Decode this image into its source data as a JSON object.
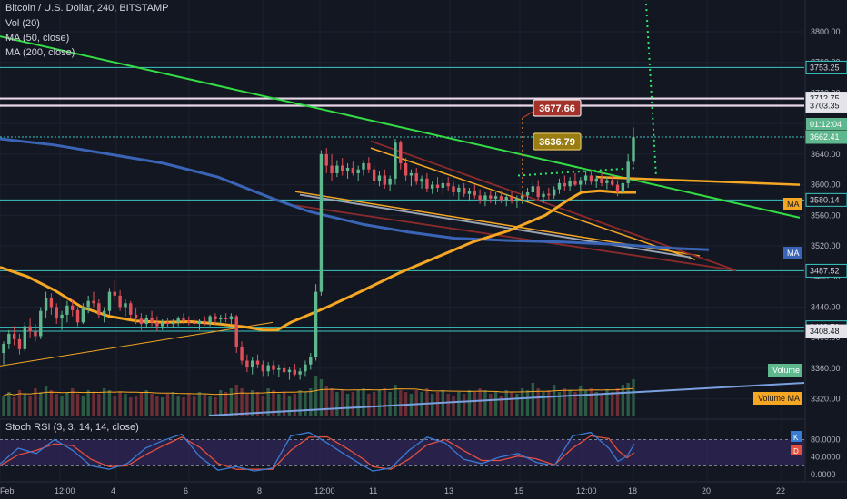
{
  "legend": {
    "title": "Bitcoin / U.S. Dollar, 240, BITSTAMP",
    "vol": "Vol (20)",
    "ma50": "MA (50, close)",
    "ma200": "MA (200, close)",
    "stoch": "Stoch RSI (3, 3, 14, 14, close)"
  },
  "callouts": {
    "high": "3677.66",
    "mid": "3636.79"
  },
  "colors": {
    "up": "#5fb88d",
    "down": "#e0505a",
    "ma50": "#f5a623",
    "ma200": "#3a64b5",
    "green_trend": "#33dd44",
    "stoch_k": "#3a7bd5",
    "stoch_d": "#e3503e",
    "hline": "#3cc7c2"
  },
  "chart_data": {
    "type": "candlestick",
    "price_axis": {
      "ticks": [
        "3800.00",
        "3760.00",
        "3720.00",
        "3680.00",
        "3640.00",
        "3600.00",
        "3560.00",
        "3520.00",
        "3480.00",
        "3440.00",
        "3400.00",
        "3360.00",
        "3320.00"
      ],
      "labels": [
        {
          "value": 3753.25,
          "text": "3753.25",
          "style": "outline"
        },
        {
          "value": 3712.75,
          "text": "3712.75",
          "style": "light"
        },
        {
          "value": 3703.35,
          "text": "3703.35",
          "style": "light"
        },
        {
          "value": 3662.41,
          "text": "3662.41",
          "style": "green"
        },
        {
          "value": 3580.14,
          "text": "3580.14",
          "style": "outline"
        },
        {
          "value": 3487.52,
          "text": "3487.52",
          "style": "outline"
        },
        {
          "value": 3413.7,
          "text": "3413.70",
          "style": "outline"
        },
        {
          "value": 3408.48,
          "text": "3408.48",
          "style": "light"
        }
      ],
      "countdown": "01:12:04",
      "tags": {
        "ma_orange": "MA",
        "ma_blue": "MA",
        "volume": "Volume",
        "volume_ma": "Volume MA"
      }
    },
    "x_axis": [
      "Feb",
      "12:00",
      "4",
      "6",
      "8",
      "12:00",
      "11",
      "13",
      "15",
      "12:00",
      "18",
      "20",
      "22"
    ],
    "stoch_axis": [
      "80.0000",
      "40.0000",
      "0.0000"
    ],
    "stoch_tags": {
      "k": "K",
      "d": "D"
    },
    "horizontal_levels": [
      3753.25,
      3712.75,
      3703.35,
      3662.41,
      3580.14,
      3487.52,
      3413.7,
      3408.48
    ],
    "candles": [
      [
        3380,
        3395,
        3365,
        3392
      ],
      [
        3392,
        3410,
        3385,
        3405
      ],
      [
        3405,
        3415,
        3390,
        3398
      ],
      [
        3398,
        3405,
        3378,
        3385
      ],
      [
        3385,
        3420,
        3382,
        3415
      ],
      [
        3415,
        3425,
        3400,
        3408
      ],
      [
        3408,
        3418,
        3395,
        3402
      ],
      [
        3402,
        3440,
        3398,
        3435
      ],
      [
        3435,
        3460,
        3425,
        3452
      ],
      [
        3452,
        3458,
        3430,
        3440
      ],
      [
        3440,
        3445,
        3418,
        3425
      ],
      [
        3425,
        3435,
        3410,
        3430
      ],
      [
        3430,
        3448,
        3420,
        3442
      ],
      [
        3442,
        3450,
        3428,
        3436
      ],
      [
        3436,
        3440,
        3415,
        3420
      ],
      [
        3420,
        3445,
        3418,
        3440
      ],
      [
        3440,
        3455,
        3432,
        3448
      ],
      [
        3448,
        3460,
        3440,
        3445
      ],
      [
        3445,
        3450,
        3425,
        3430
      ],
      [
        3430,
        3440,
        3420,
        3435
      ],
      [
        3435,
        3465,
        3430,
        3460
      ],
      [
        3460,
        3475,
        3448,
        3455
      ],
      [
        3455,
        3462,
        3435,
        3440
      ],
      [
        3440,
        3450,
        3428,
        3445
      ],
      [
        3445,
        3448,
        3425,
        3430
      ],
      [
        3430,
        3438,
        3418,
        3425
      ],
      [
        3425,
        3432,
        3410,
        3418
      ],
      [
        3418,
        3430,
        3412,
        3426
      ],
      [
        3426,
        3435,
        3415,
        3420
      ],
      [
        3420,
        3428,
        3408,
        3415
      ],
      [
        3415,
        3424,
        3410,
        3420
      ],
      [
        3420,
        3426,
        3412,
        3418
      ],
      [
        3418,
        3424,
        3414,
        3420
      ],
      [
        3420,
        3428,
        3415,
        3425
      ],
      [
        3425,
        3432,
        3418,
        3422
      ],
      [
        3422,
        3428,
        3416,
        3420
      ],
      [
        3420,
        3426,
        3414,
        3418
      ],
      [
        3418,
        3424,
        3410,
        3422
      ],
      [
        3422,
        3428,
        3416,
        3420
      ],
      [
        3420,
        3430,
        3415,
        3428
      ],
      [
        3428,
        3432,
        3418,
        3424
      ],
      [
        3424,
        3430,
        3418,
        3426
      ],
      [
        3426,
        3432,
        3420,
        3424
      ],
      [
        3424,
        3432,
        3418,
        3428
      ],
      [
        3428,
        3430,
        3380,
        3388
      ],
      [
        3388,
        3395,
        3365,
        3370
      ],
      [
        3370,
        3378,
        3355,
        3362
      ],
      [
        3362,
        3375,
        3352,
        3370
      ],
      [
        3370,
        3378,
        3360,
        3365
      ],
      [
        3365,
        3370,
        3350,
        3356
      ],
      [
        3356,
        3368,
        3350,
        3364
      ],
      [
        3364,
        3370,
        3352,
        3358
      ],
      [
        3358,
        3365,
        3348,
        3360
      ],
      [
        3360,
        3368,
        3352,
        3355
      ],
      [
        3355,
        3362,
        3345,
        3358
      ],
      [
        3358,
        3366,
        3350,
        3352
      ],
      [
        3352,
        3360,
        3345,
        3356
      ],
      [
        3356,
        3370,
        3350,
        3365
      ],
      [
        3365,
        3380,
        3358,
        3375
      ],
      [
        3375,
        3470,
        3370,
        3460
      ],
      [
        3460,
        3645,
        3455,
        3640
      ],
      [
        3640,
        3648,
        3615,
        3625
      ],
      [
        3625,
        3640,
        3605,
        3615
      ],
      [
        3615,
        3632,
        3610,
        3625
      ],
      [
        3625,
        3635,
        3612,
        3618
      ],
      [
        3618,
        3628,
        3608,
        3622
      ],
      [
        3622,
        3630,
        3612,
        3615
      ],
      [
        3615,
        3625,
        3605,
        3620
      ],
      [
        3620,
        3632,
        3612,
        3628
      ],
      [
        3628,
        3636,
        3615,
        3620
      ],
      [
        3620,
        3625,
        3600,
        3605
      ],
      [
        3605,
        3618,
        3598,
        3612
      ],
      [
        3612,
        3620,
        3595,
        3600
      ],
      [
        3600,
        3612,
        3592,
        3608
      ],
      [
        3608,
        3660,
        3600,
        3655
      ],
      [
        3655,
        3658,
        3620,
        3628
      ],
      [
        3628,
        3635,
        3605,
        3612
      ],
      [
        3612,
        3620,
        3598,
        3615
      ],
      [
        3615,
        3622,
        3600,
        3604
      ],
      [
        3604,
        3612,
        3595,
        3608
      ],
      [
        3608,
        3615,
        3590,
        3595
      ],
      [
        3595,
        3605,
        3588,
        3600
      ],
      [
        3600,
        3610,
        3590,
        3596
      ],
      [
        3596,
        3608,
        3588,
        3602
      ],
      [
        3602,
        3610,
        3592,
        3598
      ],
      [
        3598,
        3604,
        3585,
        3590
      ],
      [
        3590,
        3600,
        3580,
        3596
      ],
      [
        3596,
        3602,
        3584,
        3588
      ],
      [
        3588,
        3596,
        3578,
        3592
      ],
      [
        3592,
        3600,
        3582,
        3586
      ],
      [
        3586,
        3594,
        3575,
        3580
      ],
      [
        3580,
        3590,
        3572,
        3586
      ],
      [
        3586,
        3592,
        3576,
        3582
      ],
      [
        3582,
        3590,
        3574,
        3585
      ],
      [
        3585,
        3592,
        3576,
        3580
      ],
      [
        3580,
        3588,
        3572,
        3584
      ],
      [
        3584,
        3592,
        3575,
        3578
      ],
      [
        3578,
        3586,
        3570,
        3582
      ],
      [
        3582,
        3590,
        3575,
        3586
      ],
      [
        3586,
        3596,
        3580,
        3590
      ],
      [
        3590,
        3605,
        3585,
        3598
      ],
      [
        3598,
        3606,
        3580,
        3584
      ],
      [
        3584,
        3592,
        3576,
        3588
      ],
      [
        3588,
        3596,
        3580,
        3586
      ],
      [
        3586,
        3598,
        3582,
        3594
      ],
      [
        3594,
        3608,
        3588,
        3602
      ],
      [
        3602,
        3612,
        3592,
        3598
      ],
      [
        3598,
        3610,
        3592,
        3605
      ],
      [
        3605,
        3615,
        3598,
        3600
      ],
      [
        3600,
        3610,
        3592,
        3606
      ],
      [
        3606,
        3618,
        3600,
        3612
      ],
      [
        3612,
        3620,
        3600,
        3604
      ],
      [
        3604,
        3612,
        3596,
        3608
      ],
      [
        3608,
        3616,
        3598,
        3602
      ],
      [
        3602,
        3610,
        3594,
        3606
      ],
      [
        3606,
        3612,
        3598,
        3600
      ],
      [
        3600,
        3606,
        3585,
        3590
      ],
      [
        3590,
        3605,
        3586,
        3602
      ],
      [
        3602,
        3640,
        3596,
        3630
      ],
      [
        3630,
        3675,
        3626,
        3662
      ]
    ],
    "ma50": [
      [
        0,
        3492
      ],
      [
        30,
        3480
      ],
      [
        60,
        3462
      ],
      [
        90,
        3440
      ],
      [
        120,
        3428
      ],
      [
        150,
        3422
      ],
      [
        180,
        3420
      ],
      [
        210,
        3421
      ],
      [
        240,
        3418
      ],
      [
        270,
        3414
      ],
      [
        290,
        3410
      ],
      [
        305,
        3410
      ],
      [
        320,
        3420
      ],
      [
        360,
        3440
      ],
      [
        400,
        3462
      ],
      [
        440,
        3485
      ],
      [
        480,
        3505
      ],
      [
        520,
        3525
      ],
      [
        560,
        3540
      ],
      [
        600,
        3560
      ],
      [
        625,
        3580
      ],
      [
        640,
        3590
      ],
      [
        660,
        3592
      ],
      [
        680,
        3590
      ],
      [
        700,
        3590
      ]
    ],
    "ma200": [
      [
        0,
        3660
      ],
      [
        60,
        3652
      ],
      [
        120,
        3640
      ],
      [
        180,
        3628
      ],
      [
        240,
        3610
      ],
      [
        300,
        3582
      ],
      [
        340,
        3565
      ],
      [
        400,
        3548
      ],
      [
        450,
        3538
      ],
      [
        500,
        3530
      ],
      [
        560,
        3527
      ],
      [
        620,
        3525
      ],
      [
        680,
        3522
      ],
      [
        740,
        3517
      ],
      [
        780,
        3515
      ]
    ],
    "trendlines": [
      {
        "color": "#33dd44",
        "from": [
          0,
          3794
        ],
        "to": [
          880,
          3557
        ],
        "width": 2
      },
      {
        "color": "#f5a623",
        "from": [
          656,
          3610
        ],
        "to": [
          880,
          3600
        ],
        "width": 2.5
      },
      {
        "color": "#f5a623",
        "from": [
          408,
          3648
        ],
        "to": [
          765,
          3502
        ],
        "width": 1.5
      },
      {
        "color": "#f5a623",
        "from": [
          325,
          3591
        ],
        "to": [
          770,
          3507
        ],
        "width": 1.5
      },
      {
        "color": "#8b2a2a",
        "from": [
          408,
          3657
        ],
        "to": [
          810,
          3488
        ],
        "width": 1.8
      },
      {
        "color": "#8b2a2a",
        "from": [
          325,
          3573
        ],
        "to": [
          810,
          3488
        ],
        "width": 1.8
      },
      {
        "color": "#9aa3b2",
        "from": [
          330,
          3587
        ],
        "to": [
          760,
          3505
        ],
        "width": 2
      },
      {
        "color": "#f5a623",
        "from": [
          0,
          3363
        ],
        "to": [
          300,
          3420
        ],
        "width": 1
      },
      {
        "color": "#2ee86a",
        "from": [
          710,
          3858
        ],
        "to": [
          722,
          3610
        ],
        "width": 2,
        "dash": true
      },
      {
        "color": "#2ee86a",
        "from": [
          570,
          3612
        ],
        "to": [
          700,
          3622
        ],
        "width": 2,
        "dash": true
      },
      {
        "color": "#cfd3da",
        "from": [
          812,
          3852
        ],
        "to": [
          880,
          3848
        ],
        "width": 1.5,
        "dash": true
      }
    ],
    "volume": [
      22,
      26,
      20,
      28,
      24,
      22,
      30,
      26,
      32,
      28,
      24,
      22,
      26,
      30,
      24,
      22,
      28,
      26,
      24,
      30,
      28,
      22,
      26,
      24,
      20,
      22,
      26,
      28,
      24,
      22,
      20,
      24,
      26,
      22,
      20,
      24,
      22,
      26,
      24,
      22,
      20,
      28,
      26,
      30,
      34,
      30,
      24,
      28,
      26,
      22,
      30,
      28,
      24,
      26,
      22,
      24,
      28,
      26,
      30,
      44,
      40,
      32,
      30,
      26,
      28,
      24,
      26,
      28,
      30,
      24,
      26,
      28,
      30,
      26,
      34,
      28,
      26,
      24,
      28,
      26,
      30,
      24,
      26,
      28,
      24,
      22,
      26,
      24,
      28,
      26,
      30,
      28,
      24,
      26,
      22,
      28,
      26,
      24,
      30,
      28,
      36,
      30,
      26,
      28,
      34,
      26,
      30,
      28,
      26,
      32,
      28,
      30,
      26,
      24,
      28,
      26,
      30,
      34,
      36,
      40
    ],
    "stoch_k": [
      [
        0,
        24
      ],
      [
        20,
        60
      ],
      [
        40,
        48
      ],
      [
        60,
        80
      ],
      [
        80,
        55
      ],
      [
        100,
        20
      ],
      [
        120,
        12
      ],
      [
        140,
        25
      ],
      [
        160,
        60
      ],
      [
        180,
        78
      ],
      [
        200,
        92
      ],
      [
        220,
        40
      ],
      [
        240,
        10
      ],
      [
        260,
        18
      ],
      [
        280,
        8
      ],
      [
        300,
        15
      ],
      [
        320,
        88
      ],
      [
        340,
        96
      ],
      [
        360,
        72
      ],
      [
        380,
        45
      ],
      [
        400,
        20
      ],
      [
        410,
        8
      ],
      [
        430,
        15
      ],
      [
        450,
        55
      ],
      [
        470,
        85
      ],
      [
        490,
        72
      ],
      [
        510,
        35
      ],
      [
        530,
        25
      ],
      [
        550,
        40
      ],
      [
        570,
        48
      ],
      [
        590,
        28
      ],
      [
        610,
        20
      ],
      [
        630,
        88
      ],
      [
        650,
        96
      ],
      [
        670,
        60
      ],
      [
        680,
        30
      ],
      [
        690,
        42
      ],
      [
        698,
        70
      ]
    ],
    "stoch_d": [
      [
        0,
        20
      ],
      [
        20,
        45
      ],
      [
        40,
        55
      ],
      [
        60,
        70
      ],
      [
        80,
        66
      ],
      [
        100,
        35
      ],
      [
        120,
        18
      ],
      [
        140,
        20
      ],
      [
        160,
        45
      ],
      [
        180,
        66
      ],
      [
        200,
        85
      ],
      [
        220,
        62
      ],
      [
        240,
        25
      ],
      [
        260,
        12
      ],
      [
        280,
        12
      ],
      [
        300,
        12
      ],
      [
        320,
        55
      ],
      [
        340,
        85
      ],
      [
        360,
        86
      ],
      [
        380,
        62
      ],
      [
        400,
        35
      ],
      [
        410,
        18
      ],
      [
        430,
        12
      ],
      [
        450,
        35
      ],
      [
        470,
        68
      ],
      [
        490,
        80
      ],
      [
        510,
        55
      ],
      [
        530,
        32
      ],
      [
        550,
        32
      ],
      [
        570,
        42
      ],
      [
        590,
        36
      ],
      [
        610,
        22
      ],
      [
        630,
        60
      ],
      [
        650,
        88
      ],
      [
        670,
        82
      ],
      [
        680,
        55
      ],
      [
        690,
        38
      ],
      [
        698,
        50
      ]
    ]
  }
}
